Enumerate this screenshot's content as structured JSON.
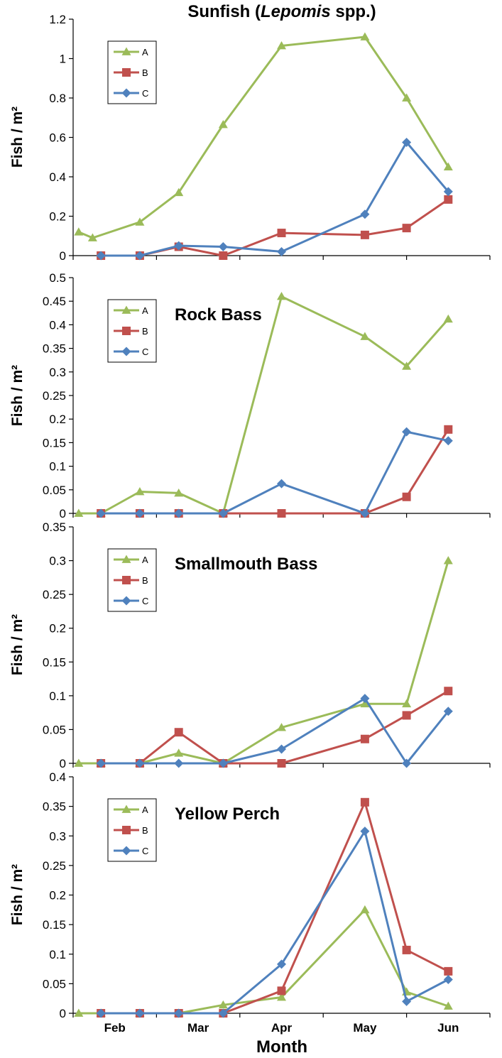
{
  "colors": {
    "A": "#9bbb59",
    "B": "#c0504d",
    "C": "#4f81bd"
  },
  "markers": {
    "A": "triangle",
    "B": "square",
    "C": "diamond"
  },
  "x_axis": {
    "label": "Month",
    "range": [
      0,
      150
    ],
    "ticks": [
      {
        "value": 15,
        "label": "Feb"
      },
      {
        "value": 45,
        "label": "Mar"
      },
      {
        "value": 75,
        "label": "Apr"
      },
      {
        "value": 105,
        "label": "May"
      },
      {
        "value": 135,
        "label": "Jun"
      }
    ],
    "minor_ticks": [
      0,
      30,
      60,
      90,
      120,
      150
    ]
  },
  "chart_data": [
    {
      "type": "line",
      "title": "Sunfish (Lepomis spp.)",
      "title_parts": [
        {
          "text": "Sunfish (",
          "italic": false
        },
        {
          "text": "Lepomis",
          "italic": true
        },
        {
          "text": " spp.)",
          "italic": false
        }
      ],
      "ylabel": "Fish / m²",
      "ylim": [
        0,
        1.2
      ],
      "yticks": [
        "0",
        "0.2",
        "0.4",
        "0.6",
        "0.8",
        "1",
        "1.2"
      ],
      "ytick_values": [
        0,
        0.2,
        0.4,
        0.6,
        0.8,
        1.0,
        1.2
      ],
      "title_position": "top-center",
      "legend_position": "top-left",
      "series": [
        {
          "name": "A",
          "x": [
            2,
            7,
            24,
            38,
            54,
            75,
            105,
            120,
            135
          ],
          "y": [
            0.12,
            0.09,
            0.17,
            0.32,
            0.665,
            1.065,
            1.11,
            0.8,
            0.45
          ]
        },
        {
          "name": "B",
          "x": [
            10,
            24,
            38,
            54,
            75,
            105,
            120,
            135
          ],
          "y": [
            0.0,
            0.0,
            0.045,
            0.0,
            0.115,
            0.105,
            0.14,
            0.285
          ]
        },
        {
          "name": "C",
          "x": [
            10,
            24,
            38,
            54,
            75,
            105,
            120,
            135
          ],
          "y": [
            0.0,
            0.0,
            0.05,
            0.045,
            0.02,
            0.21,
            0.575,
            0.325
          ]
        }
      ]
    },
    {
      "type": "line",
      "title": "Rock Bass",
      "ylabel": "Fish / m²",
      "ylim": [
        0,
        0.5
      ],
      "yticks": [
        "0",
        "0.05",
        "0.1",
        "0.15",
        "0.2",
        "0.25",
        "0.3",
        "0.35",
        "0.4",
        "0.45",
        "0.5"
      ],
      "ytick_values": [
        0,
        0.05,
        0.1,
        0.15,
        0.2,
        0.25,
        0.3,
        0.35,
        0.4,
        0.45,
        0.5
      ],
      "title_position": "upper-left",
      "legend_position": "top-left",
      "series": [
        {
          "name": "A",
          "x": [
            2,
            10,
            24,
            38,
            54,
            75,
            105,
            120,
            135
          ],
          "y": [
            0.0,
            0.0,
            0.046,
            0.043,
            0.0,
            0.46,
            0.375,
            0.312,
            0.412
          ]
        },
        {
          "name": "B",
          "x": [
            10,
            24,
            38,
            54,
            75,
            105,
            120,
            135
          ],
          "y": [
            0.0,
            0.0,
            0.0,
            0.0,
            0.0,
            0.0,
            0.035,
            0.178
          ]
        },
        {
          "name": "C",
          "x": [
            10,
            24,
            38,
            54,
            75,
            105,
            120,
            135
          ],
          "y": [
            0.0,
            0.0,
            0.0,
            0.0,
            0.063,
            0.0,
            0.173,
            0.154
          ]
        }
      ]
    },
    {
      "type": "line",
      "title": "Smallmouth Bass",
      "ylabel": "Fish / m²",
      "ylim": [
        0,
        0.35
      ],
      "yticks": [
        "0",
        "0.05",
        "0.1",
        "0.15",
        "0.2",
        "0.25",
        "0.3",
        "0.35"
      ],
      "ytick_values": [
        0,
        0.05,
        0.1,
        0.15,
        0.2,
        0.25,
        0.3,
        0.35
      ],
      "title_position": "upper-left",
      "legend_position": "top-left",
      "series": [
        {
          "name": "A",
          "x": [
            2,
            10,
            24,
            38,
            54,
            75,
            105,
            120,
            135
          ],
          "y": [
            0.0,
            0.0,
            0.0,
            0.015,
            0.0,
            0.053,
            0.088,
            0.088,
            0.3
          ]
        },
        {
          "name": "B",
          "x": [
            10,
            24,
            38,
            54,
            75,
            105,
            120,
            135
          ],
          "y": [
            0.0,
            0.0,
            0.046,
            0.0,
            0.0,
            0.036,
            0.071,
            0.107
          ]
        },
        {
          "name": "C",
          "x": [
            10,
            24,
            38,
            54,
            75,
            105,
            120,
            135
          ],
          "y": [
            0.0,
            0.0,
            0.0,
            0.0,
            0.021,
            0.096,
            0.0,
            0.077
          ]
        }
      ]
    },
    {
      "type": "line",
      "title": "Yellow Perch",
      "ylabel": "Fish / m²",
      "ylim": [
        0,
        0.4
      ],
      "yticks": [
        "0",
        "0.05",
        "0.1",
        "0.15",
        "0.2",
        "0.25",
        "0.3",
        "0.35",
        "0.4"
      ],
      "ytick_values": [
        0,
        0.05,
        0.1,
        0.15,
        0.2,
        0.25,
        0.3,
        0.35,
        0.4
      ],
      "title_position": "upper-left",
      "legend_position": "top-left",
      "series": [
        {
          "name": "A",
          "x": [
            2,
            10,
            24,
            38,
            54,
            75,
            105,
            120,
            135
          ],
          "y": [
            0.0,
            0.0,
            0.0,
            0.0,
            0.014,
            0.027,
            0.175,
            0.036,
            0.012
          ]
        },
        {
          "name": "B",
          "x": [
            10,
            24,
            38,
            54,
            75,
            105,
            120,
            135
          ],
          "y": [
            0.0,
            0.0,
            0.0,
            0.0,
            0.038,
            0.357,
            0.107,
            0.071
          ]
        },
        {
          "name": "C",
          "x": [
            10,
            24,
            38,
            54,
            75,
            105,
            120,
            135
          ],
          "y": [
            0.0,
            0.0,
            0.0,
            0.0,
            0.083,
            0.308,
            0.02,
            0.057
          ]
        }
      ]
    }
  ]
}
